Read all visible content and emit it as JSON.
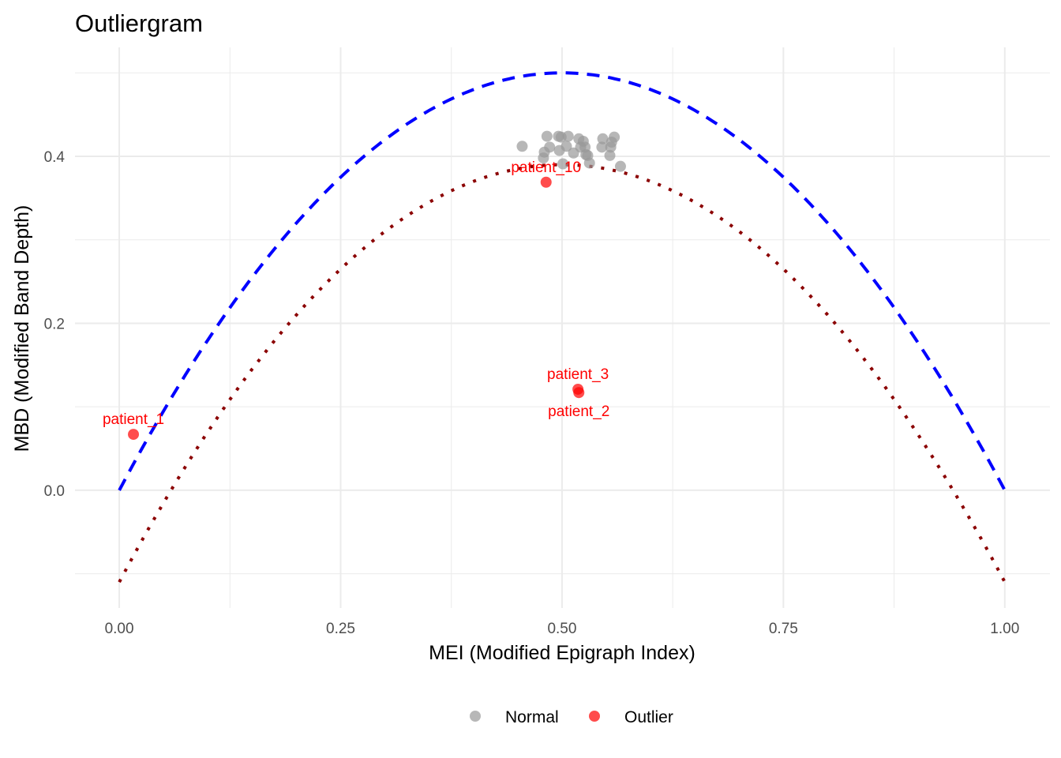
{
  "chart_data": {
    "type": "scatter",
    "title": "Outliergram",
    "xlabel": "MEI (Modified Epigraph Index)",
    "ylabel": "MBD (Modified Band Depth)",
    "xlim": [
      -0.05,
      1.051
    ],
    "ylim": [
      -0.141,
      0.5305
    ],
    "x_ticks": [
      "0.00",
      "0.25",
      "0.50",
      "0.75",
      "1.00"
    ],
    "x_tick_values": [
      0,
      0.25,
      0.5,
      0.75,
      1.0
    ],
    "y_ticks": [
      "0.0",
      "0.2",
      "0.4"
    ],
    "y_tick_values": [
      0,
      0.2,
      0.4
    ],
    "grid": true,
    "legend_position": "bottom",
    "colors": {
      "Normal": "#999999",
      "Outlier": "#ff0000",
      "upper_curve": "#0000ff",
      "lower_curve": "#8b0000"
    },
    "curves": [
      {
        "style": "dashed",
        "color": "#0000ff",
        "formula": "a0 + a1*MEI + a2*MEI^2",
        "a0": 0,
        "a1": 2,
        "a2": -2
      },
      {
        "style": "dotted",
        "color": "#8b0000",
        "formula": "a0 + a1*MEI + a2*MEI^2",
        "a0": -0.11,
        "a1": 2,
        "a2": -2
      }
    ],
    "series": [
      {
        "name": "Normal",
        "points": [
          [
            0.455,
            0.412
          ],
          [
            0.483,
            0.424
          ],
          [
            0.496,
            0.424
          ],
          [
            0.499,
            0.423
          ],
          [
            0.507,
            0.424
          ],
          [
            0.519,
            0.421
          ],
          [
            0.524,
            0.418
          ],
          [
            0.526,
            0.411
          ],
          [
            0.486,
            0.411
          ],
          [
            0.48,
            0.405
          ],
          [
            0.479,
            0.398
          ],
          [
            0.497,
            0.407
          ],
          [
            0.505,
            0.412
          ],
          [
            0.513,
            0.404
          ],
          [
            0.521,
            0.411
          ],
          [
            0.527,
            0.402
          ],
          [
            0.529,
            0.401
          ],
          [
            0.531,
            0.392
          ],
          [
            0.501,
            0.391
          ],
          [
            0.546,
            0.421
          ],
          [
            0.559,
            0.423
          ],
          [
            0.556,
            0.417
          ],
          [
            0.545,
            0.411
          ],
          [
            0.555,
            0.411
          ],
          [
            0.554,
            0.401
          ],
          [
            0.566,
            0.388
          ]
        ]
      },
      {
        "name": "Outlier",
        "points": [
          {
            "x": 0.482,
            "y": 0.369,
            "label": "patient_10"
          },
          {
            "x": 0.016,
            "y": 0.067,
            "label": "patient_1"
          },
          {
            "x": 0.518,
            "y": 0.121,
            "label": "patient_3"
          },
          {
            "x": 0.519,
            "y": 0.117,
            "label": "patient_2"
          }
        ]
      }
    ]
  }
}
